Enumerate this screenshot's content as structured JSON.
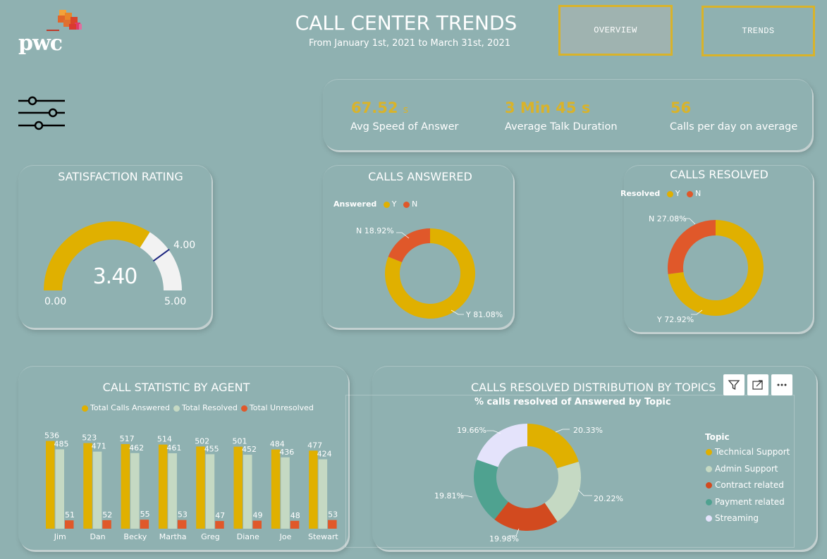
{
  "header": {
    "title": "CALL CENTER TRENDS",
    "subtitle": "From January 1st, 2021 to March 31st, 2021",
    "logo_text": "pwc"
  },
  "nav": {
    "overview_label": "OVERVIEW",
    "trends_label": "TRENDS"
  },
  "kpis": {
    "speed_value": "67.52",
    "speed_unit": "s",
    "speed_label": "Avg Speed of Answer",
    "talk_value": "3 Min 45 s",
    "talk_label": "Average Talk Duration",
    "calls_value": "56",
    "calls_label": "Calls per day on average"
  },
  "satisfaction": {
    "title": "SATISFACTION RATING",
    "value_text": "3.40",
    "min_text": "0.00",
    "max_text": "5.00",
    "target_text": "4.00"
  },
  "answered": {
    "title": "CALLS ANSWERED",
    "legend_title": "Answered",
    "legend_y": "Y",
    "legend_n": "N",
    "label_n": "N 18.92%",
    "label_y": "Y 81.08%"
  },
  "resolved": {
    "title": "CALLS RESOLVED",
    "legend_title": "Resolved",
    "legend_y": "Y",
    "legend_n": "N",
    "label_n": "N 27.08%",
    "label_y": "Y 72.92%"
  },
  "agents": {
    "title": "CALL STATISTIC BY AGENT"
  },
  "topics": {
    "title": "CALLS RESOLVED DISTRIBUTION BY TOPICS",
    "subtitle": "% calls resolved of Answered by Topic",
    "legend_title": "Topic"
  },
  "colors": {
    "gold": "#e0b000",
    "sage": "#c5d9c3",
    "orange": "#e0582a",
    "red": "#d24a1f",
    "teal": "#4fa290",
    "lavender": "#e4e3fb",
    "gauge_rest": "#f2f2f2"
  },
  "chart_data": [
    {
      "type": "gauge",
      "title": "SATISFACTION RATING",
      "value": 3.4,
      "min": 0,
      "max": 5,
      "target": 4.0
    },
    {
      "type": "pie",
      "title": "CALLS ANSWERED",
      "legend_title": "Answered",
      "categories": [
        "Y",
        "N"
      ],
      "values": [
        81.08,
        18.92
      ]
    },
    {
      "type": "pie",
      "title": "CALLS RESOLVED",
      "legend_title": "Resolved",
      "categories": [
        "Y",
        "N"
      ],
      "values": [
        72.92,
        27.08
      ]
    },
    {
      "type": "bar",
      "title": "CALL STATISTIC BY AGENT",
      "categories": [
        "Jim",
        "Dan",
        "Becky",
        "Martha",
        "Greg",
        "Diane",
        "Joe",
        "Stewart"
      ],
      "series": [
        {
          "name": "Total Calls Answered",
          "values": [
            536,
            523,
            517,
            514,
            502,
            501,
            484,
            477
          ]
        },
        {
          "name": "Total Resolved",
          "values": [
            485,
            471,
            462,
            461,
            455,
            452,
            436,
            424
          ]
        },
        {
          "name": "Total Unresolved",
          "values": [
            51,
            52,
            55,
            53,
            47,
            49,
            48,
            53
          ]
        }
      ],
      "ylim": [
        0,
        560
      ],
      "legend": "top"
    },
    {
      "type": "pie",
      "title": "% calls resolved of Answered by Topic",
      "legend_title": "Topic",
      "categories": [
        "Technical Support",
        "Admin Support",
        "Contract related",
        "Payment related",
        "Streaming"
      ],
      "values": [
        20.33,
        20.22,
        19.98,
        19.81,
        19.66
      ],
      "labels": [
        "20.33%",
        "20.22%",
        "19.98%",
        "19.81%",
        "19.66%"
      ],
      "legend": "right"
    }
  ]
}
